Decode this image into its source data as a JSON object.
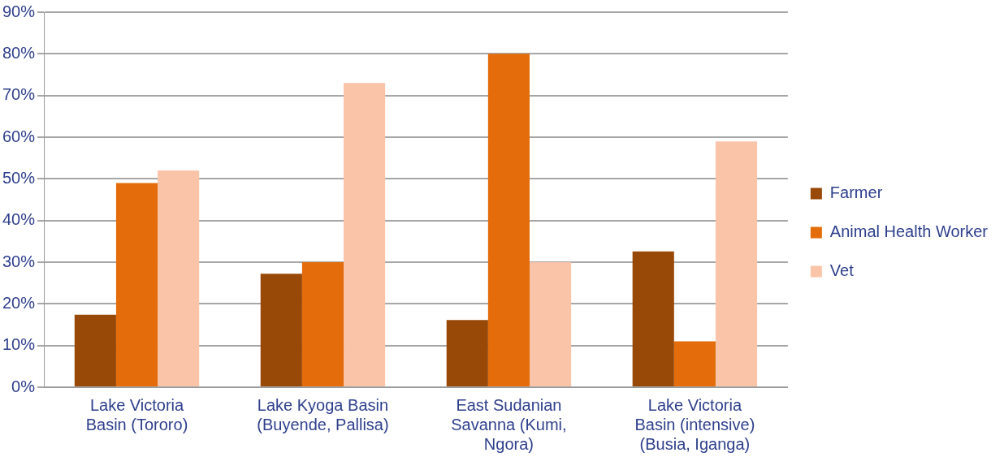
{
  "chart_data": {
    "type": "bar",
    "categories": [
      "Lake Victoria Basin (Tororo)",
      "Lake Kyoga Basin (Buyende, Pallisa)",
      "East Sudanian Savanna (Kumi, Ngora)",
      "Lake Victoria Basin (intensive) (Busia, Iganga)"
    ],
    "series": [
      {
        "name": "Farmer",
        "color": "#984807",
        "values": [
          17.4,
          27.2,
          16.1,
          32.6
        ]
      },
      {
        "name": "Animal Health Worker",
        "color": "#e46c0a",
        "values": [
          49,
          30,
          80,
          11
        ]
      },
      {
        "name": "Vet",
        "color": "#fac4a8",
        "values": [
          52,
          73,
          30,
          59
        ]
      }
    ],
    "ylim": [
      0,
      90
    ],
    "yticks": [
      {
        "value": 0,
        "label": "0%"
      },
      {
        "value": 10,
        "label": "10%"
      },
      {
        "value": 20,
        "label": "20%"
      },
      {
        "value": 30,
        "label": "30%"
      },
      {
        "value": 40,
        "label": "40%"
      },
      {
        "value": 50,
        "label": "50%"
      },
      {
        "value": 60,
        "label": "60%"
      },
      {
        "value": 70,
        "label": "70%"
      },
      {
        "value": 80,
        "label": "80%"
      },
      {
        "value": 90,
        "label": "90%"
      }
    ],
    "grid": "y",
    "legend": "right"
  }
}
